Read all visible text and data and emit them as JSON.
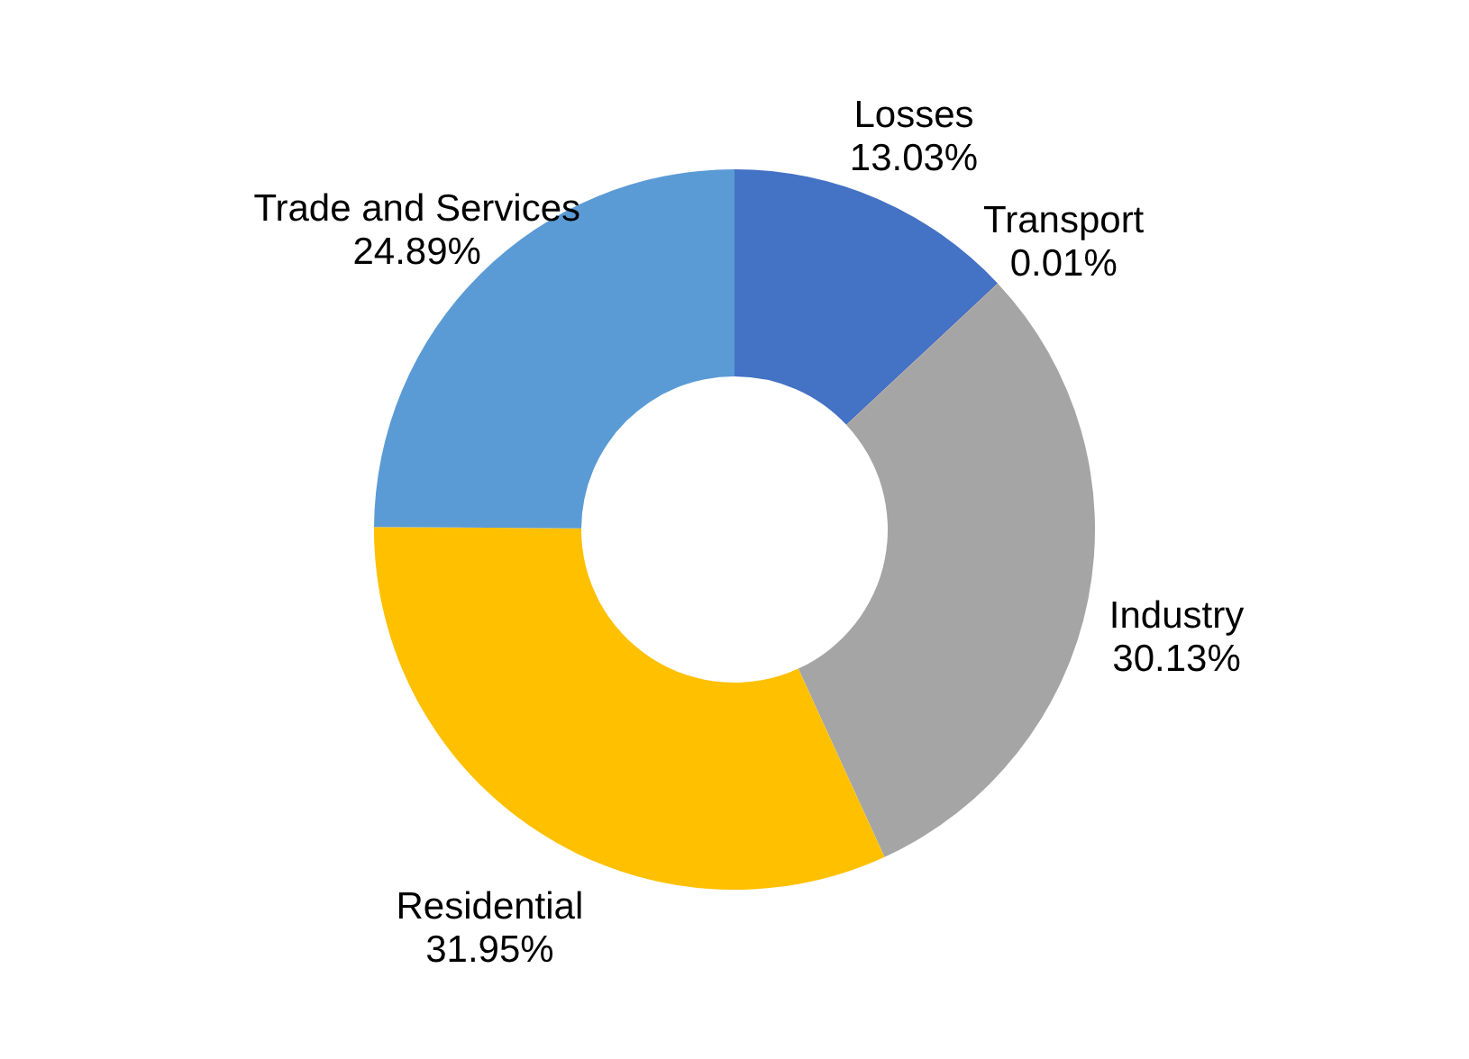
{
  "chart_data": {
    "type": "donut",
    "categories": [
      "Losses",
      "Transport",
      "Industry",
      "Residential",
      "Trade and Services"
    ],
    "values": [
      13.03,
      0.01,
      30.13,
      31.95,
      24.89
    ],
    "colors": [
      "#4472c4",
      "#ed7d31",
      "#a5a5a5",
      "#ffc000",
      "#5b9bd5"
    ],
    "value_labels": [
      "13.03%",
      "0.01%",
      "30.13%",
      "31.95%",
      "24.89%"
    ]
  }
}
